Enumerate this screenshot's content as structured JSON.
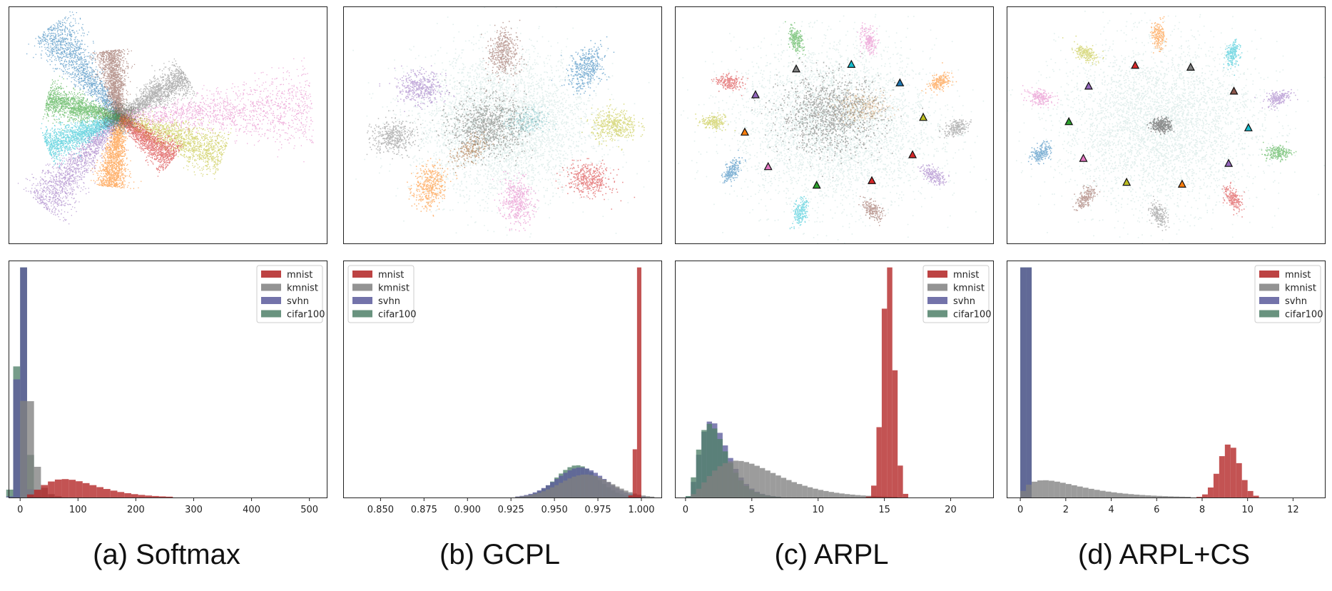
{
  "colors": {
    "tab10": [
      "#1f77b4",
      "#ff7f0e",
      "#2ca02c",
      "#d62728",
      "#9467bd",
      "#8c564b",
      "#e377c2",
      "#7f7f7f",
      "#bcbd22",
      "#17becf"
    ],
    "unknown_cloud": "#5fa59a",
    "hist": {
      "mnist": "#b22222",
      "kmnist": "#808080",
      "svhn": "#5b5b9b",
      "cifar100": "#4f8069"
    }
  },
  "chart_data": [
    {
      "type": "scatter",
      "panel": "a",
      "style": "rays",
      "rays": [
        {
          "class": 0,
          "angle_deg": 128,
          "length": 160
        },
        {
          "class": 5,
          "angle_deg": 98,
          "length": 95
        },
        {
          "class": 7,
          "angle_deg": 32,
          "length": 110
        },
        {
          "class": 6,
          "angle_deg": 3,
          "length": 270
        },
        {
          "class": 8,
          "angle_deg": -20,
          "length": 155
        },
        {
          "class": 3,
          "angle_deg": -38,
          "length": 95
        },
        {
          "class": 1,
          "angle_deg": -97,
          "length": 98
        },
        {
          "class": 4,
          "angle_deg": -132,
          "length": 165
        },
        {
          "class": 9,
          "angle_deg": -158,
          "length": 110
        },
        {
          "class": 2,
          "angle_deg": 166,
          "length": 105
        }
      ]
    },
    {
      "type": "scatter",
      "panel": "b",
      "style": "clusters",
      "clusters": [
        {
          "class": 5,
          "angle_deg": 90,
          "r": 0.85
        },
        {
          "class": 0,
          "angle_deg": 42,
          "r": 0.98
        },
        {
          "class": 8,
          "angle_deg": 0,
          "r": 0.98
        },
        {
          "class": 3,
          "angle_deg": -40,
          "r": 0.98
        },
        {
          "class": 6,
          "angle_deg": -82,
          "r": 0.9
        },
        {
          "class": 1,
          "angle_deg": -132,
          "r": 0.95
        },
        {
          "class": 7,
          "angle_deg": -172,
          "r": 0.97
        },
        {
          "class": 4,
          "angle_deg": 148,
          "r": 0.85
        }
      ]
    },
    {
      "type": "scatter",
      "panel": "c",
      "style": "clusters_with_prototypes",
      "clusters": [
        {
          "class": 2,
          "angle_deg": 108,
          "r": 1.0
        },
        {
          "class": 6,
          "angle_deg": 74,
          "r": 1.0
        },
        {
          "class": 1,
          "angle_deg": 30,
          "r": 0.97
        },
        {
          "class": 7,
          "angle_deg": -2,
          "r": 0.97
        },
        {
          "class": 4,
          "angle_deg": -35,
          "r": 0.97
        },
        {
          "class": 5,
          "angle_deg": -72,
          "r": 1.0
        },
        {
          "class": 9,
          "angle_deg": -106,
          "r": 1.0
        },
        {
          "class": 0,
          "angle_deg": -148,
          "r": 0.97
        },
        {
          "class": 8,
          "angle_deg": 178,
          "r": 0.97
        },
        {
          "class": 3,
          "angle_deg": 150,
          "r": 0.97
        }
      ],
      "prototypes": [
        7,
        9,
        0,
        8,
        3,
        3,
        2,
        6,
        1,
        4
      ]
    },
    {
      "type": "scatter",
      "panel": "d",
      "style": "clusters_with_prototypes",
      "clusters": [
        {
          "class": 1,
          "angle_deg": 90,
          "r": 1.0
        },
        {
          "class": 9,
          "angle_deg": 54,
          "r": 1.0
        },
        {
          "class": 4,
          "angle_deg": 18,
          "r": 1.0
        },
        {
          "class": 2,
          "angle_deg": -18,
          "r": 1.0
        },
        {
          "class": 3,
          "angle_deg": -54,
          "r": 1.0
        },
        {
          "class": 7,
          "angle_deg": -90,
          "r": 1.0
        },
        {
          "class": 5,
          "angle_deg": -126,
          "r": 1.0
        },
        {
          "class": 0,
          "angle_deg": -162,
          "r": 1.0
        },
        {
          "class": 6,
          "angle_deg": 162,
          "r": 1.0
        },
        {
          "class": 8,
          "angle_deg": 126,
          "r": 1.0
        }
      ],
      "prototypes": [
        3,
        7,
        5,
        9,
        4,
        1,
        8,
        6,
        2,
        4
      ]
    },
    {
      "type": "histogram",
      "panel": "a",
      "xlim": [
        -20,
        530
      ],
      "ylim": [
        0,
        1.03
      ],
      "xticks": [
        "0",
        "100",
        "200",
        "300",
        "400",
        "500"
      ],
      "xtick_values": [
        0,
        100,
        200,
        300,
        400,
        500
      ],
      "bin_width": 12,
      "series": [
        {
          "name": "cifar100",
          "dist": "spike",
          "mean": 3,
          "sd": 8,
          "height": 1.0
        },
        {
          "name": "svhn",
          "dist": "spike",
          "mean": 2,
          "sd": 6,
          "height": 1.0
        },
        {
          "name": "kmnist",
          "dist": "lognormal",
          "mu": 2.7,
          "sigma": 0.6,
          "height": 0.42
        },
        {
          "name": "mnist",
          "dist": "gamma",
          "mean": 105,
          "sd": 55,
          "skew": 1.6,
          "height": 0.08
        }
      ]
    },
    {
      "type": "histogram",
      "panel": "b",
      "xlim": [
        0.8285,
        1.0115
      ],
      "ylim": [
        0,
        1.03
      ],
      "xticks": [
        "0.850",
        "0.875",
        "0.900",
        "0.925",
        "0.950",
        "0.975",
        "1.000"
      ],
      "xtick_values": [
        0.85,
        0.875,
        0.9,
        0.925,
        0.95,
        0.975,
        1.0
      ],
      "bin_width": 0.0025,
      "series": [
        {
          "name": "cifar100",
          "dist": "normal",
          "mean": 0.963,
          "sd": 0.012,
          "height": 0.14
        },
        {
          "name": "svhn",
          "dist": "normal",
          "mean": 0.965,
          "sd": 0.014,
          "height": 0.13
        },
        {
          "name": "kmnist",
          "dist": "normal",
          "mean": 0.968,
          "sd": 0.015,
          "height": 0.1
        },
        {
          "name": "mnist",
          "dist": "spike_edge",
          "mean": 1.0,
          "sd": 0.002,
          "height": 1.0
        }
      ]
    },
    {
      "type": "histogram",
      "panel": "c",
      "xlim": [
        -0.8,
        23.2
      ],
      "ylim": [
        0,
        1.03
      ],
      "xticks": [
        "0",
        "5",
        "10",
        "15",
        "20"
      ],
      "xtick_values": [
        0,
        5,
        10,
        15,
        20
      ],
      "bin_width": 0.4,
      "series": [
        {
          "name": "svhn",
          "dist": "gamma",
          "mean": 2.5,
          "sd": 1.2,
          "height": 0.33
        },
        {
          "name": "cifar100",
          "dist": "gamma",
          "mean": 2.4,
          "sd": 1.2,
          "height": 0.32
        },
        {
          "name": "kmnist",
          "dist": "gamma",
          "mean": 5.5,
          "sd": 3.0,
          "height": 0.16
        },
        {
          "name": "mnist",
          "dist": "normal",
          "mean": 15.3,
          "sd": 0.45,
          "height": 1.0
        }
      ]
    },
    {
      "type": "histogram",
      "panel": "d",
      "xlim": [
        -0.6,
        13.4
      ],
      "ylim": [
        0,
        1.03
      ],
      "xticks": [
        "0",
        "2",
        "4",
        "6",
        "8",
        "10",
        "12"
      ],
      "xtick_values": [
        0,
        2,
        4,
        6,
        8,
        10,
        12
      ],
      "bin_width": 0.25,
      "series": [
        {
          "name": "cifar100",
          "dist": "spike",
          "mean": 0.25,
          "sd": 0.05,
          "height": 1.0
        },
        {
          "name": "svhn",
          "dist": "spike",
          "mean": 0.25,
          "sd": 0.05,
          "height": 1.0
        },
        {
          "name": "kmnist",
          "dist": "gamma",
          "mean": 2.4,
          "sd": 1.8,
          "height": 0.075
        },
        {
          "name": "mnist",
          "dist": "normal",
          "mean": 9.2,
          "sd": 0.45,
          "height": 0.23
        }
      ]
    }
  ],
  "legend": [
    "mnist",
    "kmnist",
    "svhn",
    "cifar100"
  ],
  "captions": [
    "(a)  Softmax",
    "(b)  GCPL",
    "(c)  ARPL",
    "(d)  ARPL+CS"
  ]
}
